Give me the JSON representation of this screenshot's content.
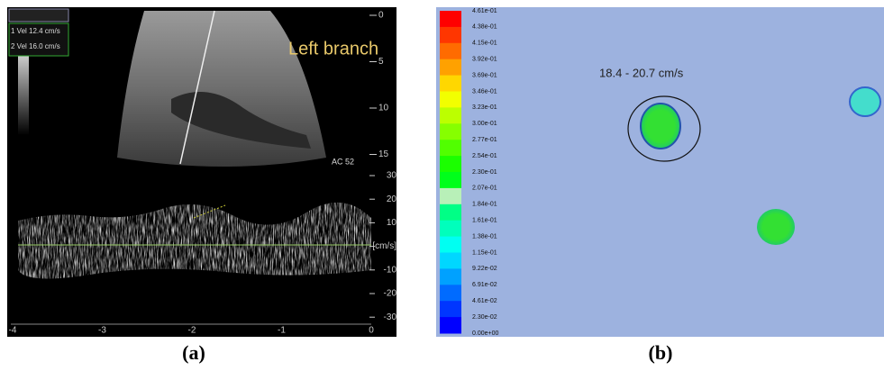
{
  "panel_a": {
    "label": "(a)",
    "title": "Left branch",
    "measurements": [
      "1 Vel 12.4 cm/s",
      "2 Vel 16.0 cm/s"
    ],
    "setting": "AC 52",
    "depth_ticks": [
      "0",
      "5",
      "10",
      "15"
    ],
    "velocity_ticks": [
      "30",
      "20",
      "10",
      "[cm/s]",
      "-10",
      "-20",
      "-30"
    ],
    "time_ticks": [
      "-4",
      "-3",
      "-2",
      "-1",
      "0"
    ]
  },
  "panel_b": {
    "label": "(b)",
    "annotation": "18.4 - 20.7 cm/s",
    "colorbar_labels": [
      "4.61e-01",
      "4.38e-01",
      "4.15e-01",
      "3.92e-01",
      "3.69e-01",
      "3.46e-01",
      "3.23e-01",
      "3.00e-01",
      "2.77e-01",
      "2.54e-01",
      "2.30e-01",
      "2.07e-01",
      "1.84e-01",
      "1.61e-01",
      "1.38e-01",
      "1.15e-01",
      "9.22e-02",
      "6.91e-02",
      "4.61e-02",
      "2.30e-02",
      "0.00e+00"
    ]
  }
}
